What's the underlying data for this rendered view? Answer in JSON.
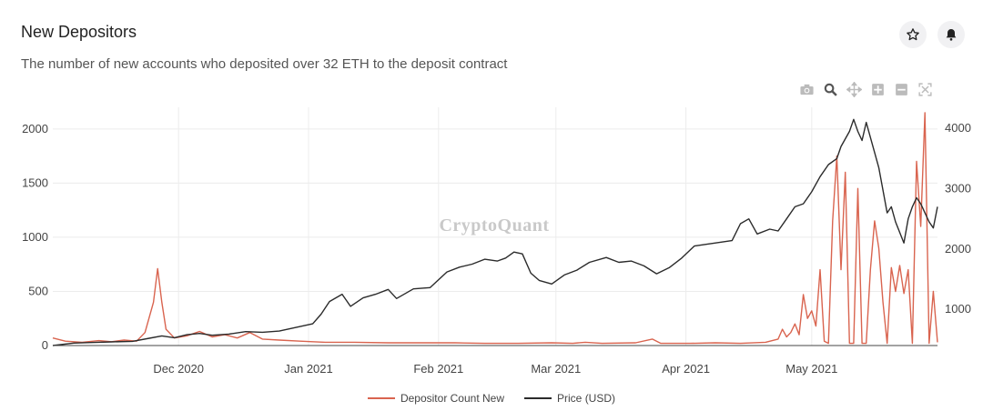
{
  "header": {
    "title": "New Depositors",
    "subtitle": "The number of new accounts who deposited over 32 ETH to the deposit contract"
  },
  "icons": {
    "favorite": "star-icon",
    "alert": "bell-icon",
    "modebar": [
      "camera-icon",
      "zoom-icon",
      "pan-icon",
      "zoom-in-icon",
      "zoom-out-icon",
      "autoscale-icon"
    ]
  },
  "watermark": "CryptoQuant",
  "colors": {
    "depositor": "#d9644f",
    "price": "#2b2b2b"
  },
  "chart_data": {
    "type": "line",
    "x_range": [
      "2020-11-01",
      "2021-05-31"
    ],
    "x_ticks": [
      {
        "date": "2020-12-01",
        "label": "Dec 2020"
      },
      {
        "date": "2021-01-01",
        "label": "Jan 2021"
      },
      {
        "date": "2021-02-01",
        "label": "Feb 2021"
      },
      {
        "date": "2021-03-01",
        "label": "Mar 2021"
      },
      {
        "date": "2021-04-01",
        "label": "Apr 2021"
      },
      {
        "date": "2021-05-01",
        "label": "May 2021"
      }
    ],
    "y_left": {
      "range": [
        0,
        2200
      ],
      "ticks": [
        0,
        500,
        1000,
        1500,
        2000
      ]
    },
    "y_right": {
      "range": [
        400,
        4350
      ],
      "ticks": [
        1000,
        2000,
        3000,
        4000
      ]
    },
    "grid": true,
    "legend_position": "bottom-center",
    "series": [
      {
        "name": "Depositor Count New",
        "axis": "left",
        "color": "#d9644f",
        "points": [
          [
            "2020-11-01",
            70
          ],
          [
            "2020-11-04",
            40
          ],
          [
            "2020-11-08",
            30
          ],
          [
            "2020-11-12",
            45
          ],
          [
            "2020-11-15",
            35
          ],
          [
            "2020-11-18",
            50
          ],
          [
            "2020-11-21",
            40
          ],
          [
            "2020-11-23",
            120
          ],
          [
            "2020-11-25",
            400
          ],
          [
            "2020-11-26",
            710
          ],
          [
            "2020-11-27",
            400
          ],
          [
            "2020-11-28",
            150
          ],
          [
            "2020-11-30",
            70
          ],
          [
            "2020-12-03",
            90
          ],
          [
            "2020-12-06",
            130
          ],
          [
            "2020-12-09",
            80
          ],
          [
            "2020-12-12",
            100
          ],
          [
            "2020-12-15",
            70
          ],
          [
            "2020-12-18",
            120
          ],
          [
            "2020-12-21",
            60
          ],
          [
            "2020-12-25",
            50
          ],
          [
            "2020-12-30",
            40
          ],
          [
            "2021-01-05",
            30
          ],
          [
            "2021-01-12",
            30
          ],
          [
            "2021-01-20",
            25
          ],
          [
            "2021-01-28",
            25
          ],
          [
            "2021-02-05",
            25
          ],
          [
            "2021-02-12",
            20
          ],
          [
            "2021-02-20",
            20
          ],
          [
            "2021-02-28",
            25
          ],
          [
            "2021-03-05",
            20
          ],
          [
            "2021-03-08",
            30
          ],
          [
            "2021-03-12",
            20
          ],
          [
            "2021-03-20",
            25
          ],
          [
            "2021-03-24",
            60
          ],
          [
            "2021-03-26",
            20
          ],
          [
            "2021-04-02",
            20
          ],
          [
            "2021-04-08",
            25
          ],
          [
            "2021-04-14",
            20
          ],
          [
            "2021-04-20",
            30
          ],
          [
            "2021-04-23",
            60
          ],
          [
            "2021-04-24",
            150
          ],
          [
            "2021-04-25",
            80
          ],
          [
            "2021-04-26",
            120
          ],
          [
            "2021-04-27",
            200
          ],
          [
            "2021-04-28",
            100
          ],
          [
            "2021-04-29",
            470
          ],
          [
            "2021-04-30",
            250
          ],
          [
            "2021-05-01",
            320
          ],
          [
            "2021-05-02",
            180
          ],
          [
            "2021-05-03",
            700
          ],
          [
            "2021-05-04",
            40
          ],
          [
            "2021-05-05",
            20
          ],
          [
            "2021-05-06",
            1150
          ],
          [
            "2021-05-07",
            1750
          ],
          [
            "2021-05-08",
            700
          ],
          [
            "2021-05-09",
            1600
          ],
          [
            "2021-05-10",
            20
          ],
          [
            "2021-05-11",
            20
          ],
          [
            "2021-05-12",
            1450
          ],
          [
            "2021-05-13",
            20
          ],
          [
            "2021-05-14",
            20
          ],
          [
            "2021-05-15",
            700
          ],
          [
            "2021-05-16",
            1150
          ],
          [
            "2021-05-17",
            900
          ],
          [
            "2021-05-18",
            400
          ],
          [
            "2021-05-19",
            20
          ],
          [
            "2021-05-20",
            720
          ],
          [
            "2021-05-21",
            500
          ],
          [
            "2021-05-22",
            740
          ],
          [
            "2021-05-23",
            480
          ],
          [
            "2021-05-24",
            700
          ],
          [
            "2021-05-25",
            20
          ],
          [
            "2021-05-26",
            1700
          ],
          [
            "2021-05-27",
            1100
          ],
          [
            "2021-05-28",
            2150
          ],
          [
            "2021-05-29",
            20
          ],
          [
            "2021-05-30",
            500
          ],
          [
            "2021-05-31",
            30
          ]
        ]
      },
      {
        "name": "Price (USD)",
        "axis": "right",
        "color": "#2b2b2b",
        "points": [
          [
            "2020-11-01",
            400
          ],
          [
            "2020-11-06",
            440
          ],
          [
            "2020-11-10",
            450
          ],
          [
            "2020-11-15",
            460
          ],
          [
            "2020-11-20",
            470
          ],
          [
            "2020-11-24",
            520
          ],
          [
            "2020-11-27",
            560
          ],
          [
            "2020-11-30",
            530
          ],
          [
            "2020-12-03",
            580
          ],
          [
            "2020-12-06",
            600
          ],
          [
            "2020-12-09",
            570
          ],
          [
            "2020-12-13",
            590
          ],
          [
            "2020-12-17",
            630
          ],
          [
            "2020-12-21",
            620
          ],
          [
            "2020-12-25",
            640
          ],
          [
            "2020-12-29",
            700
          ],
          [
            "2021-01-02",
            760
          ],
          [
            "2021-01-04",
            920
          ],
          [
            "2021-01-06",
            1130
          ],
          [
            "2021-01-09",
            1250
          ],
          [
            "2021-01-11",
            1050
          ],
          [
            "2021-01-14",
            1190
          ],
          [
            "2021-01-17",
            1250
          ],
          [
            "2021-01-20",
            1330
          ],
          [
            "2021-01-22",
            1180
          ],
          [
            "2021-01-26",
            1340
          ],
          [
            "2021-01-30",
            1360
          ],
          [
            "2021-02-03",
            1620
          ],
          [
            "2021-02-06",
            1700
          ],
          [
            "2021-02-09",
            1750
          ],
          [
            "2021-02-12",
            1830
          ],
          [
            "2021-02-15",
            1800
          ],
          [
            "2021-02-17",
            1850
          ],
          [
            "2021-02-19",
            1950
          ],
          [
            "2021-02-21",
            1920
          ],
          [
            "2021-02-23",
            1600
          ],
          [
            "2021-02-25",
            1480
          ],
          [
            "2021-02-28",
            1420
          ],
          [
            "2021-03-03",
            1570
          ],
          [
            "2021-03-06",
            1650
          ],
          [
            "2021-03-09",
            1780
          ],
          [
            "2021-03-13",
            1860
          ],
          [
            "2021-03-16",
            1780
          ],
          [
            "2021-03-19",
            1800
          ],
          [
            "2021-03-22",
            1720
          ],
          [
            "2021-03-25",
            1590
          ],
          [
            "2021-03-28",
            1690
          ],
          [
            "2021-03-31",
            1850
          ],
          [
            "2021-04-03",
            2050
          ],
          [
            "2021-04-06",
            2080
          ],
          [
            "2021-04-09",
            2110
          ],
          [
            "2021-04-12",
            2140
          ],
          [
            "2021-04-14",
            2420
          ],
          [
            "2021-04-16",
            2500
          ],
          [
            "2021-04-18",
            2250
          ],
          [
            "2021-04-21",
            2330
          ],
          [
            "2021-04-23",
            2300
          ],
          [
            "2021-04-25",
            2500
          ],
          [
            "2021-04-27",
            2700
          ],
          [
            "2021-04-29",
            2750
          ],
          [
            "2021-05-01",
            2950
          ],
          [
            "2021-05-03",
            3200
          ],
          [
            "2021-05-05",
            3400
          ],
          [
            "2021-05-07",
            3500
          ],
          [
            "2021-05-08",
            3700
          ],
          [
            "2021-05-10",
            3950
          ],
          [
            "2021-05-11",
            4150
          ],
          [
            "2021-05-12",
            3950
          ],
          [
            "2021-05-13",
            3800
          ],
          [
            "2021-05-14",
            4100
          ],
          [
            "2021-05-16",
            3600
          ],
          [
            "2021-05-17",
            3350
          ],
          [
            "2021-05-19",
            2600
          ],
          [
            "2021-05-20",
            2700
          ],
          [
            "2021-05-21",
            2450
          ],
          [
            "2021-05-23",
            2100
          ],
          [
            "2021-05-24",
            2500
          ],
          [
            "2021-05-25",
            2700
          ],
          [
            "2021-05-26",
            2850
          ],
          [
            "2021-05-27",
            2750
          ],
          [
            "2021-05-29",
            2450
          ],
          [
            "2021-05-30",
            2350
          ],
          [
            "2021-05-31",
            2700
          ]
        ]
      }
    ]
  }
}
